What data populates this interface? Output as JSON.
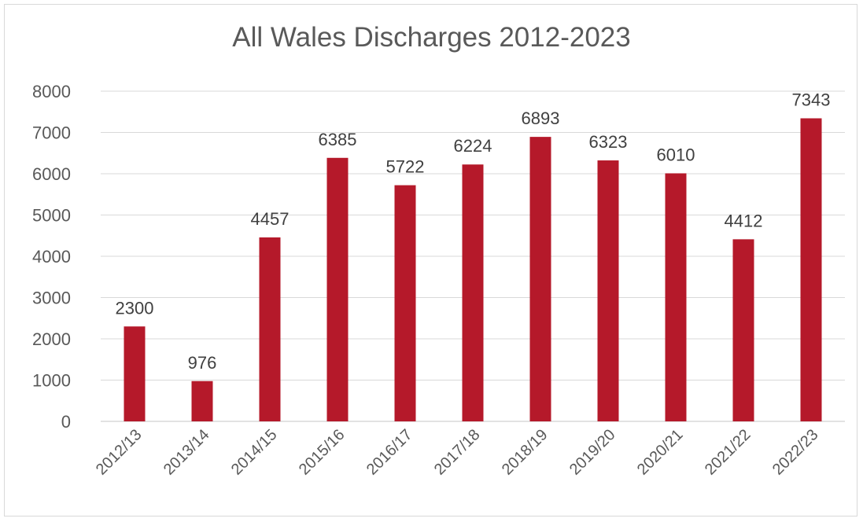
{
  "chart_data": {
    "type": "bar",
    "title": "All Wales Discharges 2012-2023",
    "xlabel": "",
    "ylabel": "",
    "categories": [
      "2012/13",
      "2013/14",
      "2014/15",
      "2015/16",
      "2016/17",
      "2017/18",
      "2018/19",
      "2019/20",
      "2020/21",
      "2021/22",
      "2022/23"
    ],
    "values": [
      2300,
      976,
      4457,
      6385,
      5722,
      6224,
      6893,
      6323,
      6010,
      4412,
      7343
    ],
    "ylim": [
      0,
      8000
    ],
    "yticks": [
      0,
      1000,
      2000,
      3000,
      4000,
      5000,
      6000,
      7000,
      8000
    ],
    "grid": true,
    "legend": "none",
    "bar_color": "#b5192a",
    "grid_color": "#d9d9d9",
    "text_color": "#595959"
  }
}
